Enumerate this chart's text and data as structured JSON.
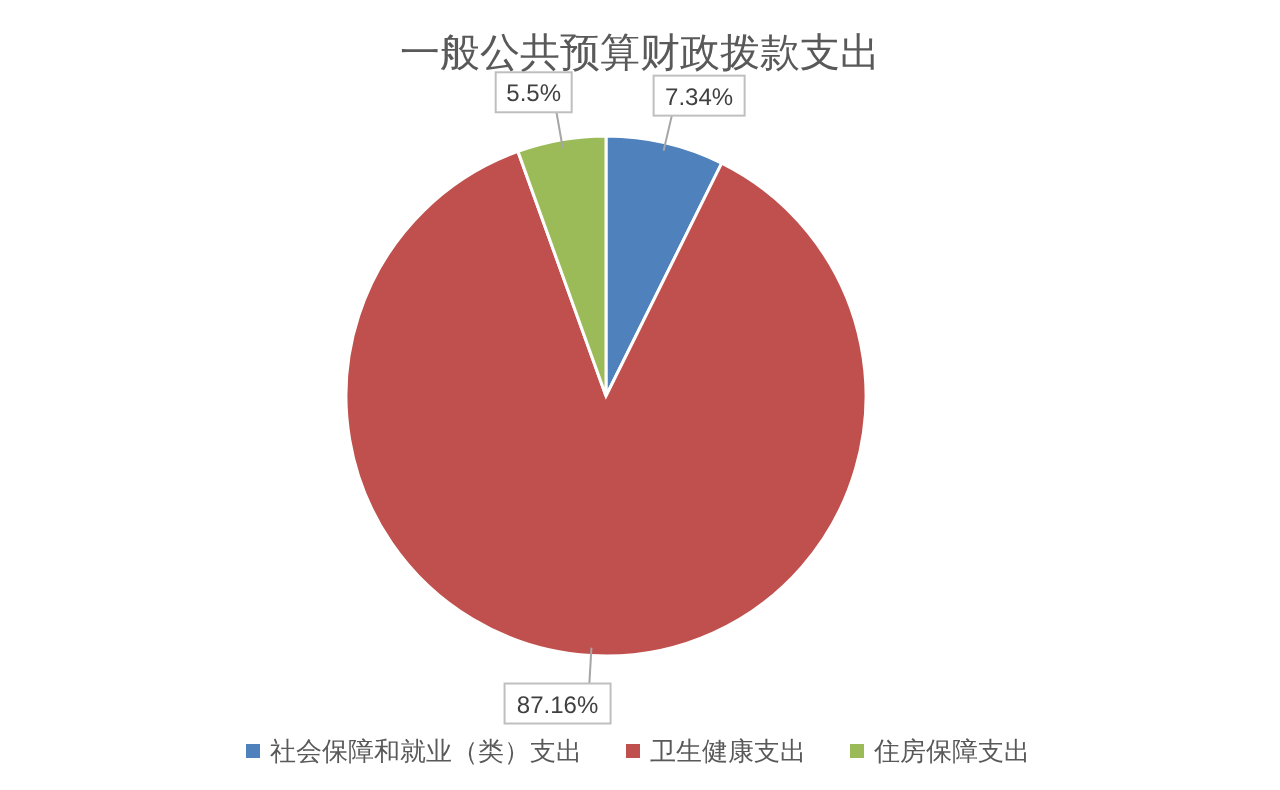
{
  "chart_data": {
    "type": "pie",
    "title": "一般公共预算财政拨款支出",
    "categories": [
      "社会保障和就业（类）支出",
      "卫生健康支出",
      "住房保障支出"
    ],
    "values": [
      7.34,
      87.16,
      5.5
    ],
    "value_labels": [
      "7.34%",
      "87.16%",
      "5.5%"
    ],
    "colors": [
      "#4f81bd",
      "#c0504d",
      "#9bbb59"
    ],
    "legend": "bottom"
  }
}
